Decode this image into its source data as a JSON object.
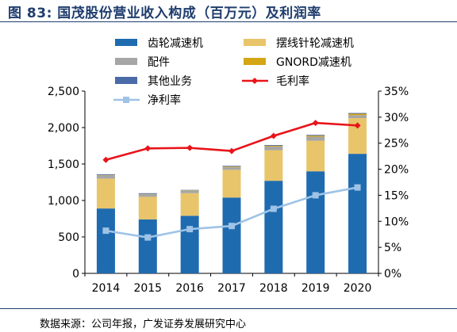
{
  "figure_title": "图 83: 国茂股份营业收入构成（百万元）及利润率",
  "source_note": "数据来源：公司年报，广发证券发展研究中心",
  "colors": {
    "title": "#1f3d6d",
    "gear_reducer": "#1f6bb0",
    "cycloid_reducer": "#e8c56a",
    "accessories": "#a6a6a6",
    "gnord_reducer": "#d4a514",
    "other": "#4a6aa8",
    "gross_margin": "#e8141a",
    "net_margin": "#9ec3e6"
  },
  "chart_data": {
    "type": "bar",
    "stacked": true,
    "categories": [
      "2014",
      "2015",
      "2016",
      "2017",
      "2018",
      "2019",
      "2020"
    ],
    "series": [
      {
        "name": "齿轮减速机",
        "key": "gear_reducer",
        "axis": "left",
        "values": [
          890,
          740,
          790,
          1040,
          1270,
          1400,
          1640
        ]
      },
      {
        "name": "摆线针轮减速机",
        "key": "cycloid_reducer",
        "axis": "left",
        "values": [
          410,
          310,
          310,
          380,
          420,
          420,
          490
        ]
      },
      {
        "name": "配件",
        "key": "accessories",
        "axis": "left",
        "values": [
          45,
          35,
          35,
          35,
          50,
          55,
          40
        ]
      },
      {
        "name": "GNORD减速机",
        "key": "gnord_reducer",
        "axis": "left",
        "values": [
          5,
          5,
          5,
          10,
          10,
          15,
          20
        ]
      },
      {
        "name": "其他业务",
        "key": "other",
        "axis": "left",
        "values": [
          10,
          10,
          5,
          10,
          10,
          10,
          10
        ]
      }
    ],
    "lines": [
      {
        "name": "毛利率",
        "key": "gross_margin",
        "axis": "right",
        "marker": "diamond",
        "values": [
          21.8,
          24.0,
          24.1,
          23.5,
          26.4,
          28.9,
          28.4
        ]
      },
      {
        "name": "净利率",
        "key": "net_margin",
        "axis": "right",
        "marker": "square",
        "values": [
          8.2,
          6.9,
          8.5,
          9.1,
          12.4,
          15.0,
          16.5
        ]
      }
    ],
    "y_left": {
      "min": 0,
      "max": 2500,
      "ticks": [
        "0",
        "500",
        "1,000",
        "1,500",
        "2,000",
        "2,500"
      ]
    },
    "y_right": {
      "min": 0,
      "max": 35,
      "ticks": [
        "0%",
        "5%",
        "10%",
        "15%",
        "20%",
        "25%",
        "30%",
        "35%"
      ]
    },
    "legend": [
      {
        "label": "齿轮减速机",
        "key": "gear_reducer",
        "kind": "bar"
      },
      {
        "label": "摆线针轮减速机",
        "key": "cycloid_reducer",
        "kind": "bar"
      },
      {
        "label": "配件",
        "key": "accessories",
        "kind": "bar"
      },
      {
        "label": "GNORD减速机",
        "key": "gnord_reducer",
        "kind": "bar"
      },
      {
        "label": "其他业务",
        "key": "other",
        "kind": "bar"
      },
      {
        "label": "毛利率",
        "key": "gross_margin",
        "kind": "line-diamond"
      },
      {
        "label": "净利率",
        "key": "net_margin",
        "kind": "line-square"
      }
    ],
    "legend_position": "top-left, inside plot",
    "grid": false
  }
}
